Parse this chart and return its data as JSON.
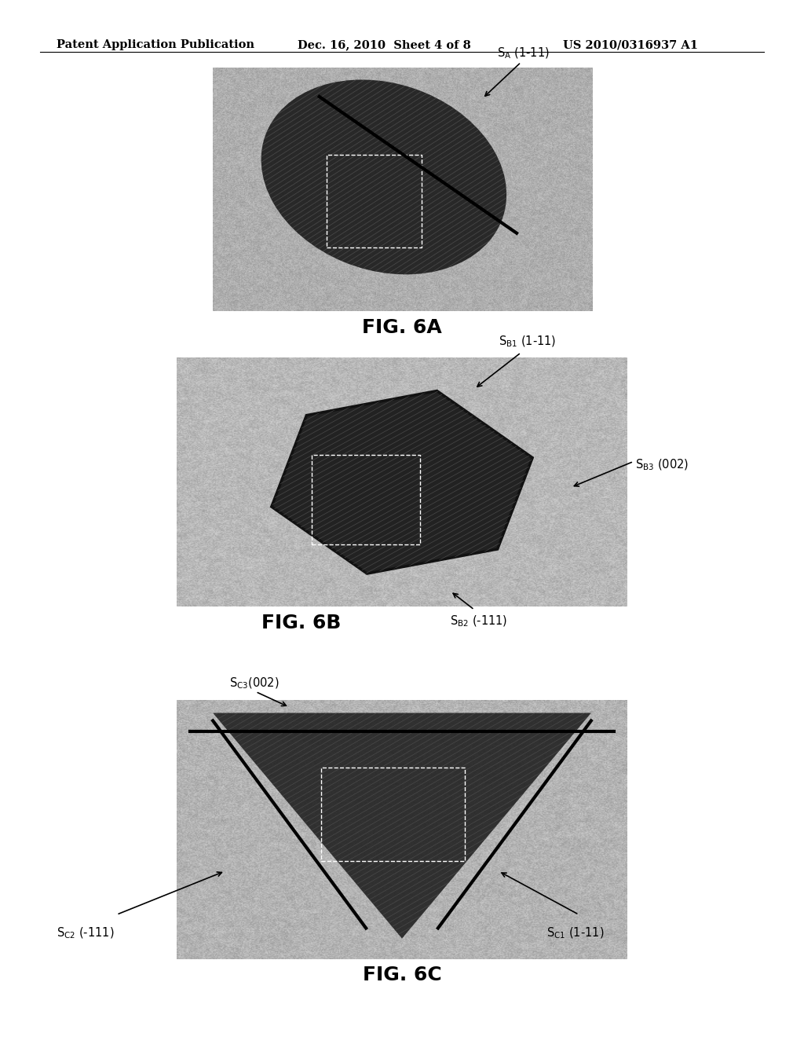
{
  "header_left": "Patent Application Publication",
  "header_mid": "Dec. 16, 2010  Sheet 4 of 8",
  "header_right": "US 2010/0316937 A1",
  "fig6a_label": "FIG. 6A",
  "fig6b_label": "FIG. 6B",
  "fig6c_label": "FIG. 6C",
  "bg_color": "#ffffff",
  "header_fontsize": 10.5,
  "fig_label_fontsize": 18,
  "annotation_fontsize": 10.5
}
